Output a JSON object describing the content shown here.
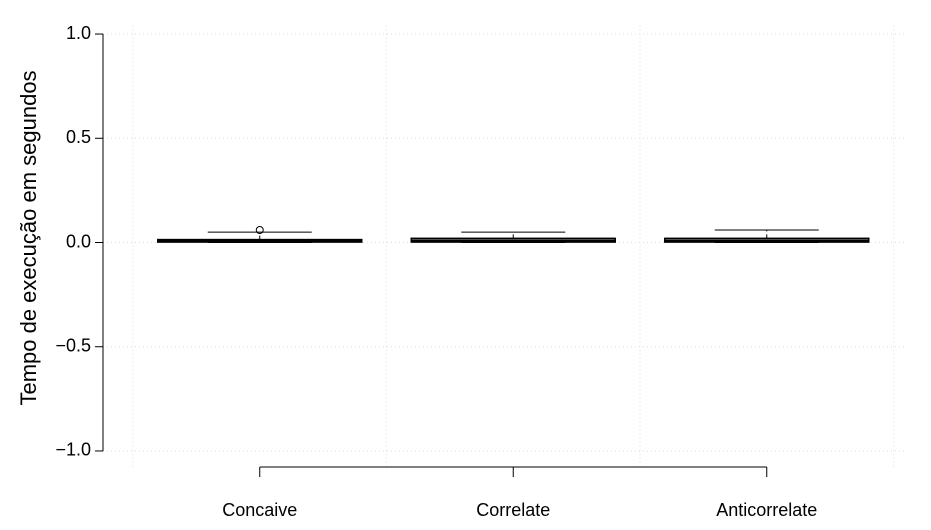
{
  "chart_data": {
    "type": "box",
    "y_label": "Tempo de execução em segundos",
    "categories": [
      "Concaive",
      "Correlate",
      "Anticorrelate"
    ],
    "boxes": [
      {
        "min": 0.0,
        "q1": 0.002,
        "median": 0.008,
        "q3": 0.014,
        "max": 0.05,
        "outliers": [
          0.06
        ]
      },
      {
        "min": 0.0,
        "q1": 0.002,
        "median": 0.008,
        "q3": 0.02,
        "max": 0.05,
        "outliers": []
      },
      {
        "min": 0.0,
        "q1": 0.002,
        "median": 0.008,
        "q3": 0.02,
        "max": 0.06,
        "outliers": []
      }
    ],
    "ylim": [
      -1.04,
      1.04
    ],
    "yticks": [
      {
        "value": -1,
        "label": "−1.0"
      },
      {
        "value": -0.5,
        "label": "−0.5"
      },
      {
        "value": 0,
        "label": "0.0"
      },
      {
        "value": 0.5,
        "label": "0.5"
      },
      {
        "value": 1,
        "label": "1.0"
      }
    ],
    "grid": true,
    "color": "#000000"
  }
}
